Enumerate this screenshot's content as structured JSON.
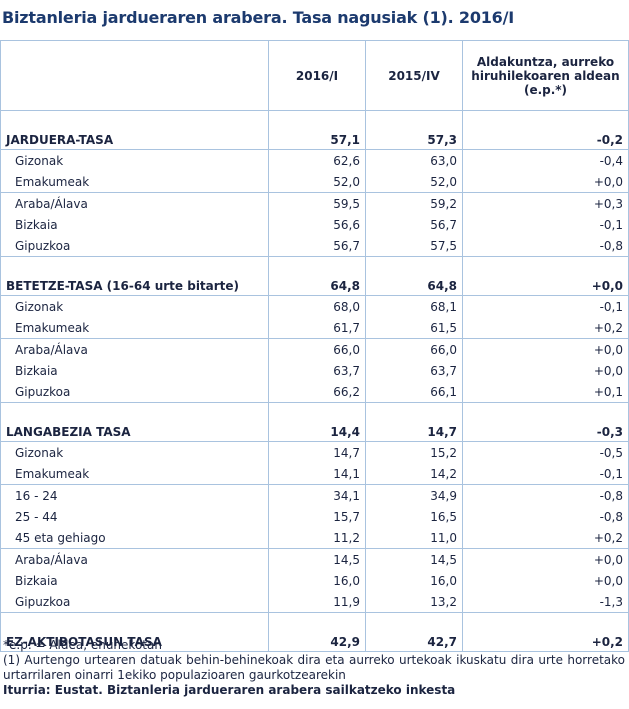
{
  "title": "Biztanleria jardueraren arabera. Tasa nagusiak (1). 2016/I",
  "header": {
    "columns": [
      "2016/I",
      "2015/IV"
    ],
    "change_lines": [
      "Aldakuntza, aurreko",
      "hiruhilekoaren aldean",
      "(e.p.*)"
    ]
  },
  "sections": [
    {
      "label": "JARDUERA-TASA",
      "values": [
        "57,1",
        "57,3",
        "-0,2"
      ],
      "groups": [
        [
          {
            "label": "Gizonak",
            "values": [
              "62,6",
              "63,0",
              "-0,4"
            ]
          },
          {
            "label": "Emakumeak",
            "values": [
              "52,0",
              "52,0",
              "+0,0"
            ]
          }
        ],
        [
          {
            "label": "Araba/Álava",
            "values": [
              "59,5",
              "59,2",
              "+0,3"
            ]
          },
          {
            "label": "Bizkaia",
            "values": [
              "56,6",
              "56,7",
              "-0,1"
            ]
          },
          {
            "label": "Gipuzkoa",
            "values": [
              "56,7",
              "57,5",
              "-0,8"
            ]
          }
        ]
      ]
    },
    {
      "label": "BETETZE-TASA (16-64 urte bitarte)",
      "values": [
        "64,8",
        "64,8",
        "+0,0"
      ],
      "groups": [
        [
          {
            "label": "Gizonak",
            "values": [
              "68,0",
              "68,1",
              "-0,1"
            ]
          },
          {
            "label": "Emakumeak",
            "values": [
              "61,7",
              "61,5",
              "+0,2"
            ]
          }
        ],
        [
          {
            "label": "Araba/Álava",
            "values": [
              "66,0",
              "66,0",
              "+0,0"
            ]
          },
          {
            "label": "Bizkaia",
            "values": [
              "63,7",
              "63,7",
              "+0,0"
            ]
          },
          {
            "label": "Gipuzkoa",
            "values": [
              "66,2",
              "66,1",
              "+0,1"
            ]
          }
        ]
      ]
    },
    {
      "label": "LANGABEZIA TASA",
      "values": [
        "14,4",
        "14,7",
        "-0,3"
      ],
      "groups": [
        [
          {
            "label": "Gizonak",
            "values": [
              "14,7",
              "15,2",
              "-0,5"
            ]
          },
          {
            "label": "Emakumeak",
            "values": [
              "14,1",
              "14,2",
              "-0,1"
            ]
          }
        ],
        [
          {
            "label": "16 - 24",
            "values": [
              "34,1",
              "34,9",
              "-0,8"
            ]
          },
          {
            "label": "25 - 44",
            "values": [
              "15,7",
              "16,5",
              "-0,8"
            ]
          },
          {
            "label": "45 eta gehiago",
            "values": [
              "11,2",
              "11,0",
              "+0,2"
            ]
          }
        ],
        [
          {
            "label": "Araba/Álava",
            "values": [
              "14,5",
              "14,5",
              "+0,0"
            ]
          },
          {
            "label": "Bizkaia",
            "values": [
              "16,0",
              "16,0",
              "+0,0"
            ]
          },
          {
            "label": "Gipuzkoa",
            "values": [
              "11,9",
              "13,2",
              "-1,3"
            ]
          }
        ]
      ]
    },
    {
      "label": "EZ-AKTIBOTASUN  TASA",
      "values": [
        "42,9",
        "42,7",
        "+0,2"
      ],
      "groups": []
    }
  ],
  "footer": {
    "note_ep": "*e.p. = Aldea, ehunekotan",
    "note_1": "(1) Aurtengo urtearen datuak behin-behinekoak dira eta aurreko urtekoak ikuskatu dira urte horretako urtarrilaren oinarri 1ekiko populazioaren gaurkotzearekin",
    "source": "Iturria: Eustat. Biztanleria jardueraren arabera sailkatzeko inkesta"
  }
}
